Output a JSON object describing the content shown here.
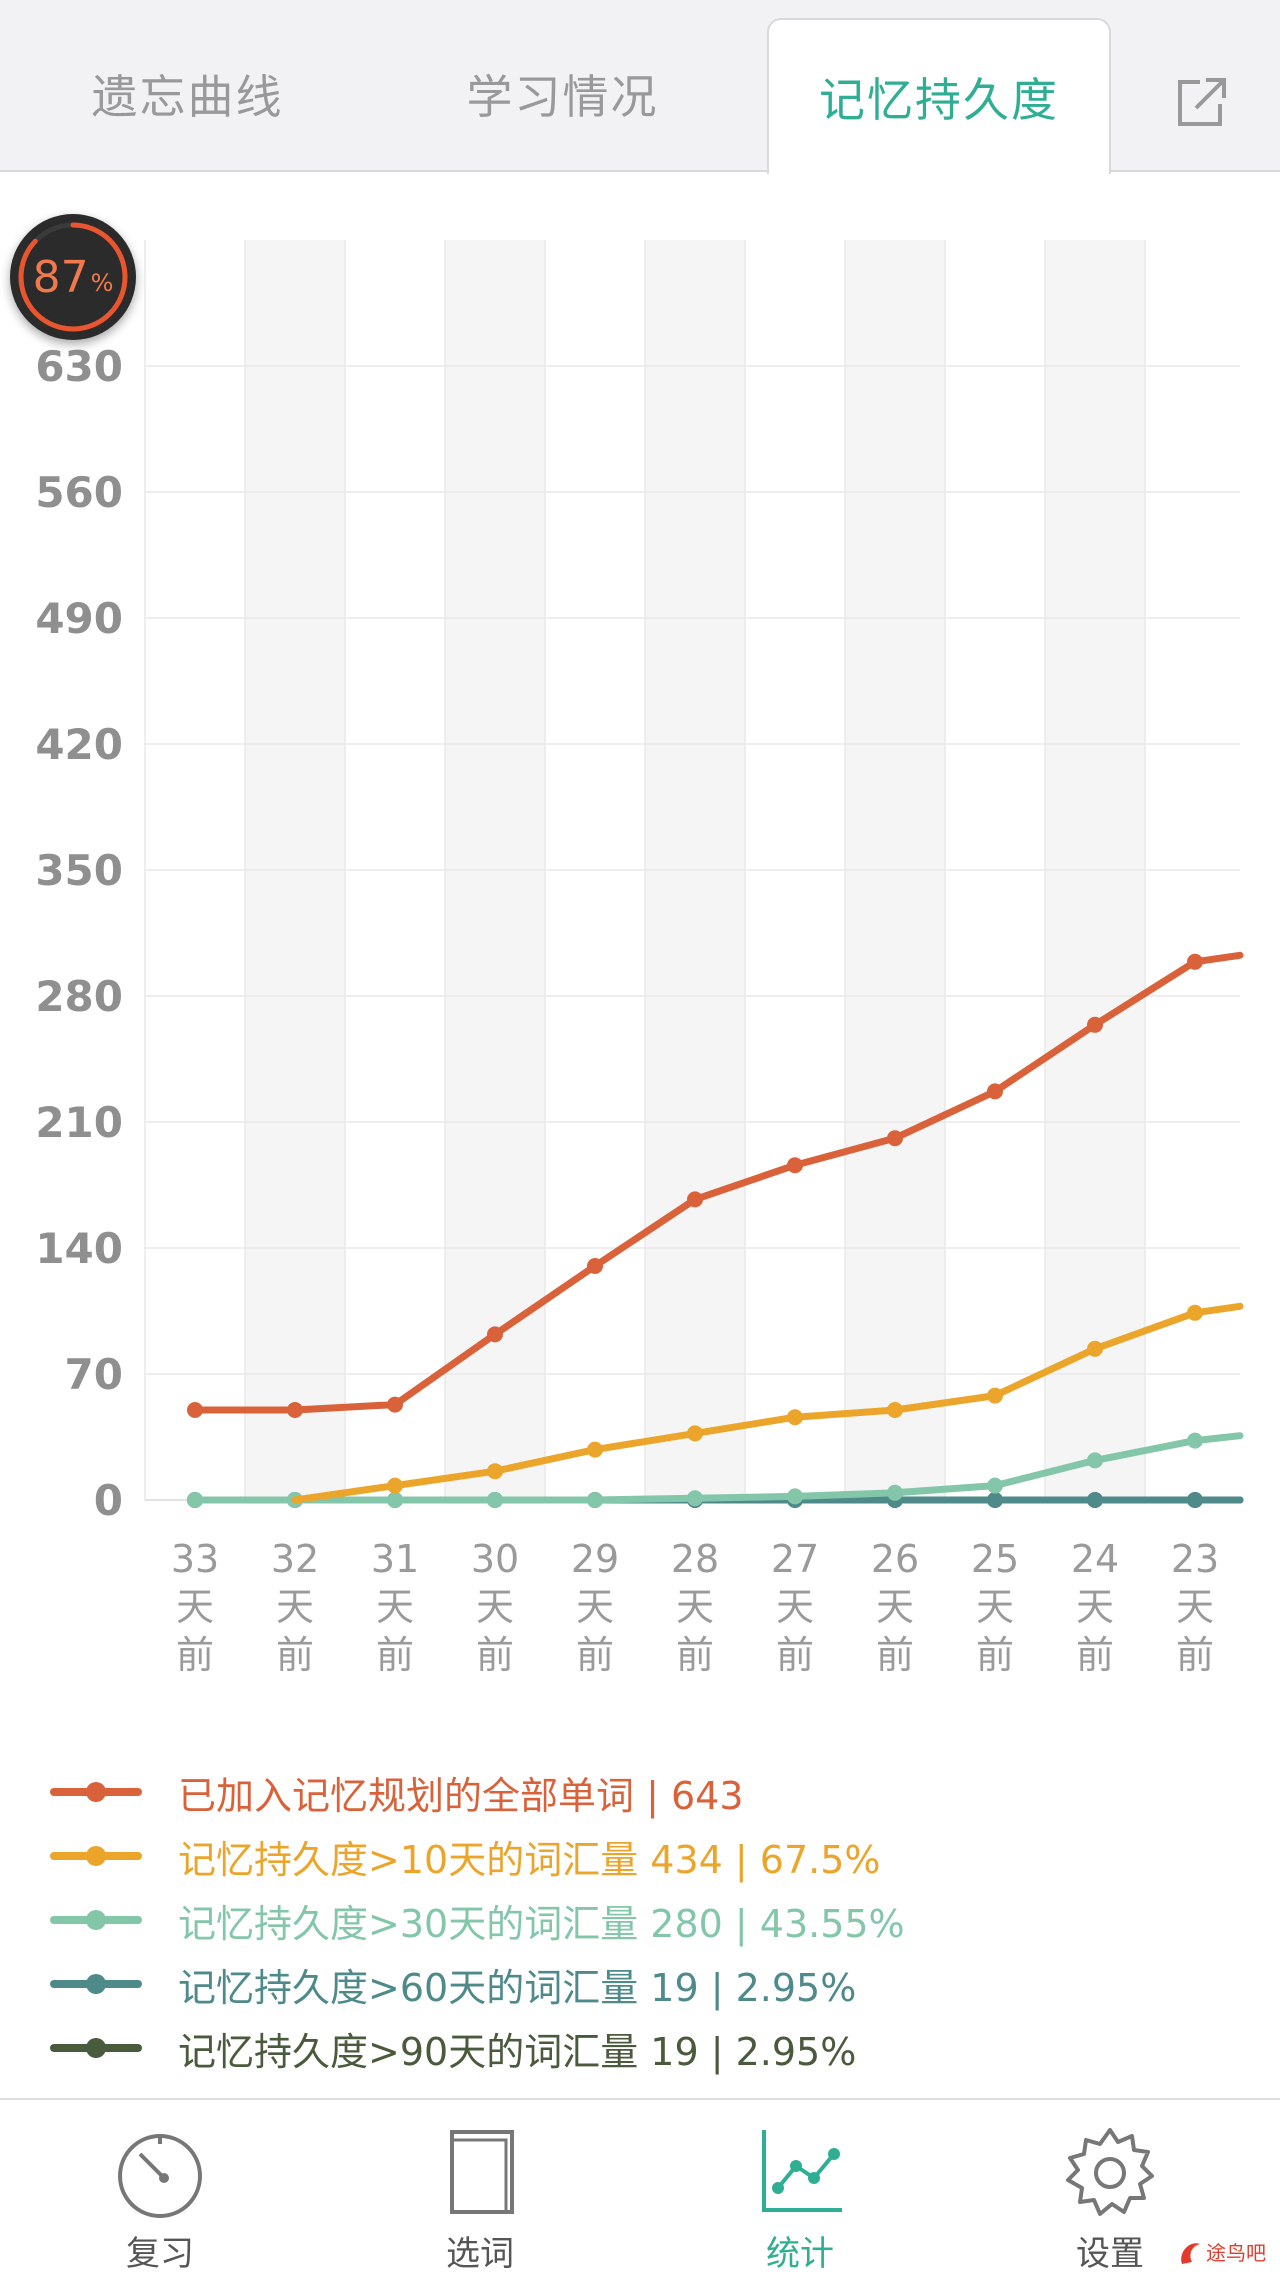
{
  "tabs": [
    {
      "label": "遗忘曲线"
    },
    {
      "label": "学习情况"
    },
    {
      "label": "记忆持久度"
    }
  ],
  "badge": {
    "value": "87",
    "unit": "%"
  },
  "chart_data": {
    "type": "line",
    "categories": [
      "33\n天\n前",
      "32\n天\n前",
      "31\n天\n前",
      "30\n天\n前",
      "29\n天\n前",
      "28\n天\n前",
      "27\n天\n前",
      "26\n天\n前",
      "25\n天\n前",
      "24\n天\n前",
      "23\n天\n前"
    ],
    "yticks": [
      0,
      70,
      140,
      210,
      280,
      350,
      420,
      490,
      560,
      630
    ],
    "ylim": [
      0,
      700
    ],
    "series": [
      {
        "name": "已加入记忆规划的全部单词 | 643",
        "color": "#d9623b",
        "values": [
          50,
          50,
          53,
          92,
          130,
          167,
          186,
          201,
          227,
          264,
          299
        ],
        "next": 307
      },
      {
        "name": "记忆持久度>10天的词汇量 434 | 67.5%",
        "color": "#eca52b",
        "values": [
          null,
          0,
          8,
          16,
          28,
          37,
          46,
          50,
          58,
          84,
          104
        ],
        "next": 112
      },
      {
        "name": "记忆持久度>30天的词汇量 280 | 43.55%",
        "color": "#83c6aa",
        "values": [
          0,
          0,
          0,
          0,
          0,
          1,
          2,
          4,
          8,
          22,
          33
        ],
        "next": 39
      },
      {
        "name": "记忆持久度>60天的词汇量 19 | 2.95%",
        "color": "#4f8a8b",
        "values": [
          0,
          0,
          0,
          0,
          0,
          0,
          0,
          0,
          0,
          0,
          0
        ],
        "next": 0
      },
      {
        "name": "记忆持久度>90天的词汇量 19 | 2.95%",
        "color": "#4a5a3c",
        "values": [
          0,
          0,
          0,
          0,
          0,
          0,
          0,
          0,
          0,
          0,
          0
        ],
        "next": 0
      }
    ],
    "grid": true
  },
  "bottom_nav": [
    {
      "label": "复习",
      "icon": "stopwatch-icon"
    },
    {
      "label": "选词",
      "icon": "book-icon"
    },
    {
      "label": "统计",
      "icon": "chart-icon"
    },
    {
      "label": "设置",
      "icon": "gear-icon"
    }
  ],
  "watermark": {
    "text": "途鸟吧"
  }
}
